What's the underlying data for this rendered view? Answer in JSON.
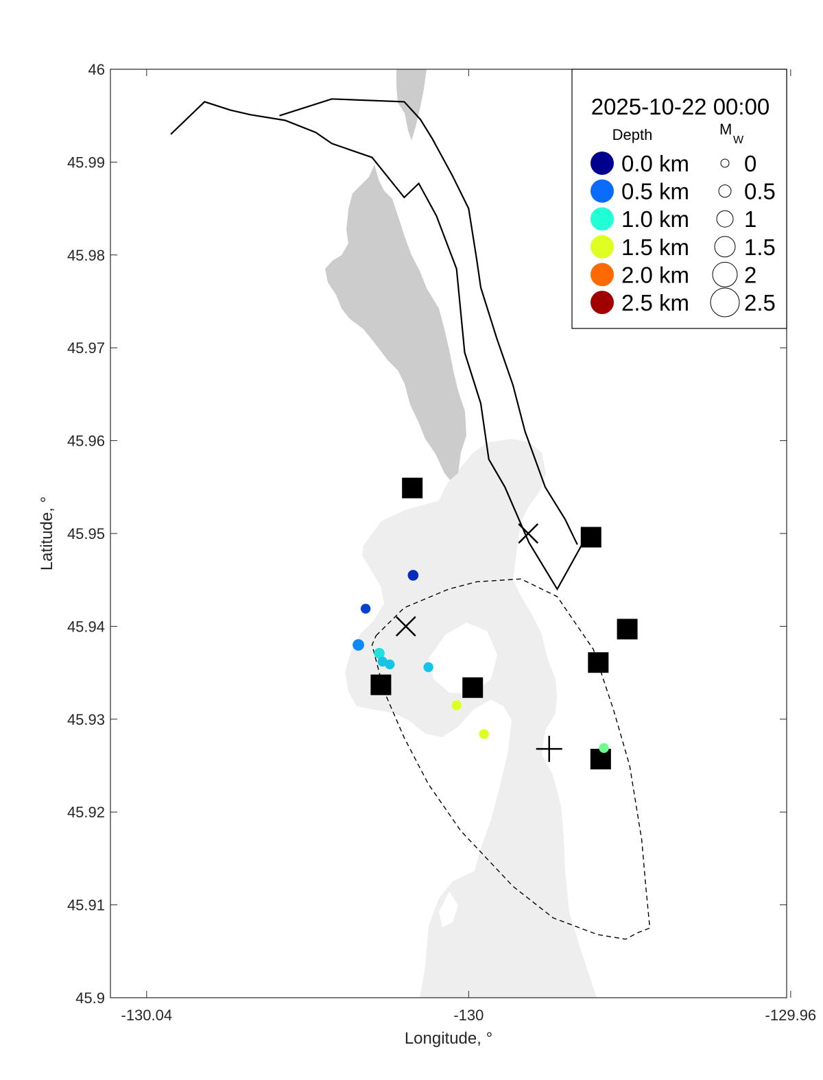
{
  "chart_data": {
    "type": "scatter",
    "xlabel": "Longitude, °",
    "ylabel": "Latitude, °",
    "xlim": [
      -130.0445,
      -129.9605
    ],
    "ylim": [
      45.9,
      46.0
    ],
    "x_ticks": [
      -130.04,
      -130.0,
      -129.96
    ],
    "x_tick_labels": [
      "-130.04",
      "-130",
      "-129.96"
    ],
    "y_ticks": [
      45.9,
      45.91,
      45.92,
      45.93,
      45.94,
      45.95,
      45.96,
      45.97,
      45.98,
      45.99,
      46.0
    ],
    "y_tick_labels": [
      "45.9",
      "45.91",
      "45.92",
      "45.93",
      "45.94",
      "45.95",
      "45.96",
      "45.97",
      "45.98",
      "45.99",
      "46"
    ],
    "grid": false,
    "legend": {
      "placement": "top-right",
      "title": "2025-10-22 00:00",
      "depth_header": "Depth",
      "magnitude_header_main": "M",
      "magnitude_header_sub": "W",
      "depth_entries": [
        {
          "label": "0.0 km",
          "color": "#00008f"
        },
        {
          "label": "0.5 km",
          "color": "#0a6cff"
        },
        {
          "label": "1.0 km",
          "color": "#22ffd6"
        },
        {
          "label": "1.5 km",
          "color": "#dfff22"
        },
        {
          "label": "2.0 km",
          "color": "#ff6a00"
        },
        {
          "label": "2.5 km",
          "color": "#a00000"
        }
      ],
      "magnitude_entries": [
        "0",
        "0.5",
        "1",
        "1.5",
        "2",
        "2.5"
      ]
    },
    "earthquakes": [
      {
        "lon": -130.0069,
        "lat": 45.9455,
        "depth_km": 0.2,
        "mw": 0.3
      },
      {
        "lon": -130.0128,
        "lat": 45.9419,
        "depth_km": 0.3,
        "mw": 0.2
      },
      {
        "lon": -130.0137,
        "lat": 45.938,
        "depth_km": 0.6,
        "mw": 0.4
      },
      {
        "lon": -130.0111,
        "lat": 45.9371,
        "depth_km": 0.9,
        "mw": 0.3
      },
      {
        "lon": -130.0107,
        "lat": 45.9362,
        "depth_km": 0.8,
        "mw": 0.2
      },
      {
        "lon": -130.0098,
        "lat": 45.9359,
        "depth_km": 0.8,
        "mw": 0.2
      },
      {
        "lon": -130.005,
        "lat": 45.9356,
        "depth_km": 0.8,
        "mw": 0.2
      },
      {
        "lon": -130.0015,
        "lat": 45.9315,
        "depth_km": 1.5,
        "mw": 0.2
      },
      {
        "lon": -129.9981,
        "lat": 45.9284,
        "depth_km": 1.5,
        "mw": 0.2
      },
      {
        "lon": -129.9832,
        "lat": 45.9269,
        "depth_km": 1.2,
        "mw": 0.2
      }
    ],
    "stations": [
      {
        "lon": -130.007,
        "lat": 45.9549
      },
      {
        "lon": -129.9848,
        "lat": 45.9496
      },
      {
        "lon": -129.9803,
        "lat": 45.9397
      },
      {
        "lon": -129.9839,
        "lat": 45.9361
      },
      {
        "lon": -130.0109,
        "lat": 45.9337
      },
      {
        "lon": -129.9995,
        "lat": 45.9334
      },
      {
        "lon": -129.9836,
        "lat": 45.9257
      }
    ],
    "x_markers": [
      {
        "lon": -129.9926,
        "lat": 45.95
      },
      {
        "lon": -130.0078,
        "lat": 45.94
      }
    ],
    "plus_markers": [
      {
        "lon": -129.99,
        "lat": 45.9268
      }
    ],
    "caldera_outline_solid": [
      [
        -130.037,
        45.993
      ],
      [
        -130.0328,
        45.9965
      ],
      [
        -130.0296,
        45.9956
      ],
      [
        -130.0271,
        45.9951
      ],
      [
        -130.0228,
        45.9945
      ],
      [
        -130.019,
        45.9932
      ],
      [
        -130.017,
        45.992
      ],
      [
        -130.012,
        45.9905
      ],
      [
        -130.008,
        45.9862
      ],
      [
        -130.0062,
        45.9877
      ],
      [
        -130.004,
        45.9842
      ],
      [
        -130.0015,
        45.9785
      ],
      [
        -130.0005,
        45.9695
      ],
      [
        -129.9985,
        45.964
      ],
      [
        -129.9975,
        45.958
      ],
      [
        -129.9955,
        45.955
      ],
      [
        -129.9925,
        45.949
      ],
      [
        -129.989,
        45.944
      ],
      [
        -129.9858,
        45.949
      ]
    ],
    "outline_solid": [
      [
        -130.0235,
        45.995
      ],
      [
        -130.017,
        45.9968
      ],
      [
        -130.008,
        45.9965
      ],
      [
        -130.006,
        45.9946
      ],
      [
        -130.0045,
        45.9925
      ],
      [
        -130.002,
        45.9885
      ],
      [
        -130.0,
        45.985
      ],
      [
        -129.999,
        45.9795
      ],
      [
        -129.9985,
        45.9765
      ],
      [
        -129.9965,
        45.971
      ],
      [
        -129.9945,
        45.966
      ],
      [
        -129.993,
        45.961
      ],
      [
        -129.9905,
        45.955
      ],
      [
        -129.988,
        45.9515
      ],
      [
        -129.9865,
        45.9488
      ]
    ],
    "lava_flow_dashed": [
      [
        -130.0115,
        45.939
      ],
      [
        -130.008,
        45.942
      ],
      [
        -130.0025,
        45.944
      ],
      [
        -129.999,
        45.9448
      ],
      [
        -129.9935,
        45.9451
      ],
      [
        -129.989,
        45.9432
      ],
      [
        -129.9845,
        45.9375
      ],
      [
        -129.982,
        45.931
      ],
      [
        -129.98,
        45.925
      ],
      [
        -129.9785,
        45.917
      ],
      [
        -129.978,
        45.912
      ],
      [
        -129.9775,
        45.9075
      ],
      [
        -129.979,
        45.907
      ],
      [
        -129.9805,
        45.9063
      ],
      [
        -129.984,
        45.9068
      ],
      [
        -129.9895,
        45.9086
      ],
      [
        -129.9945,
        45.912
      ],
      [
        -130.001,
        45.918
      ],
      [
        -130.005,
        45.923
      ],
      [
        -130.008,
        45.928
      ],
      [
        -130.0105,
        45.933
      ],
      [
        -130.012,
        45.938
      ]
    ]
  }
}
